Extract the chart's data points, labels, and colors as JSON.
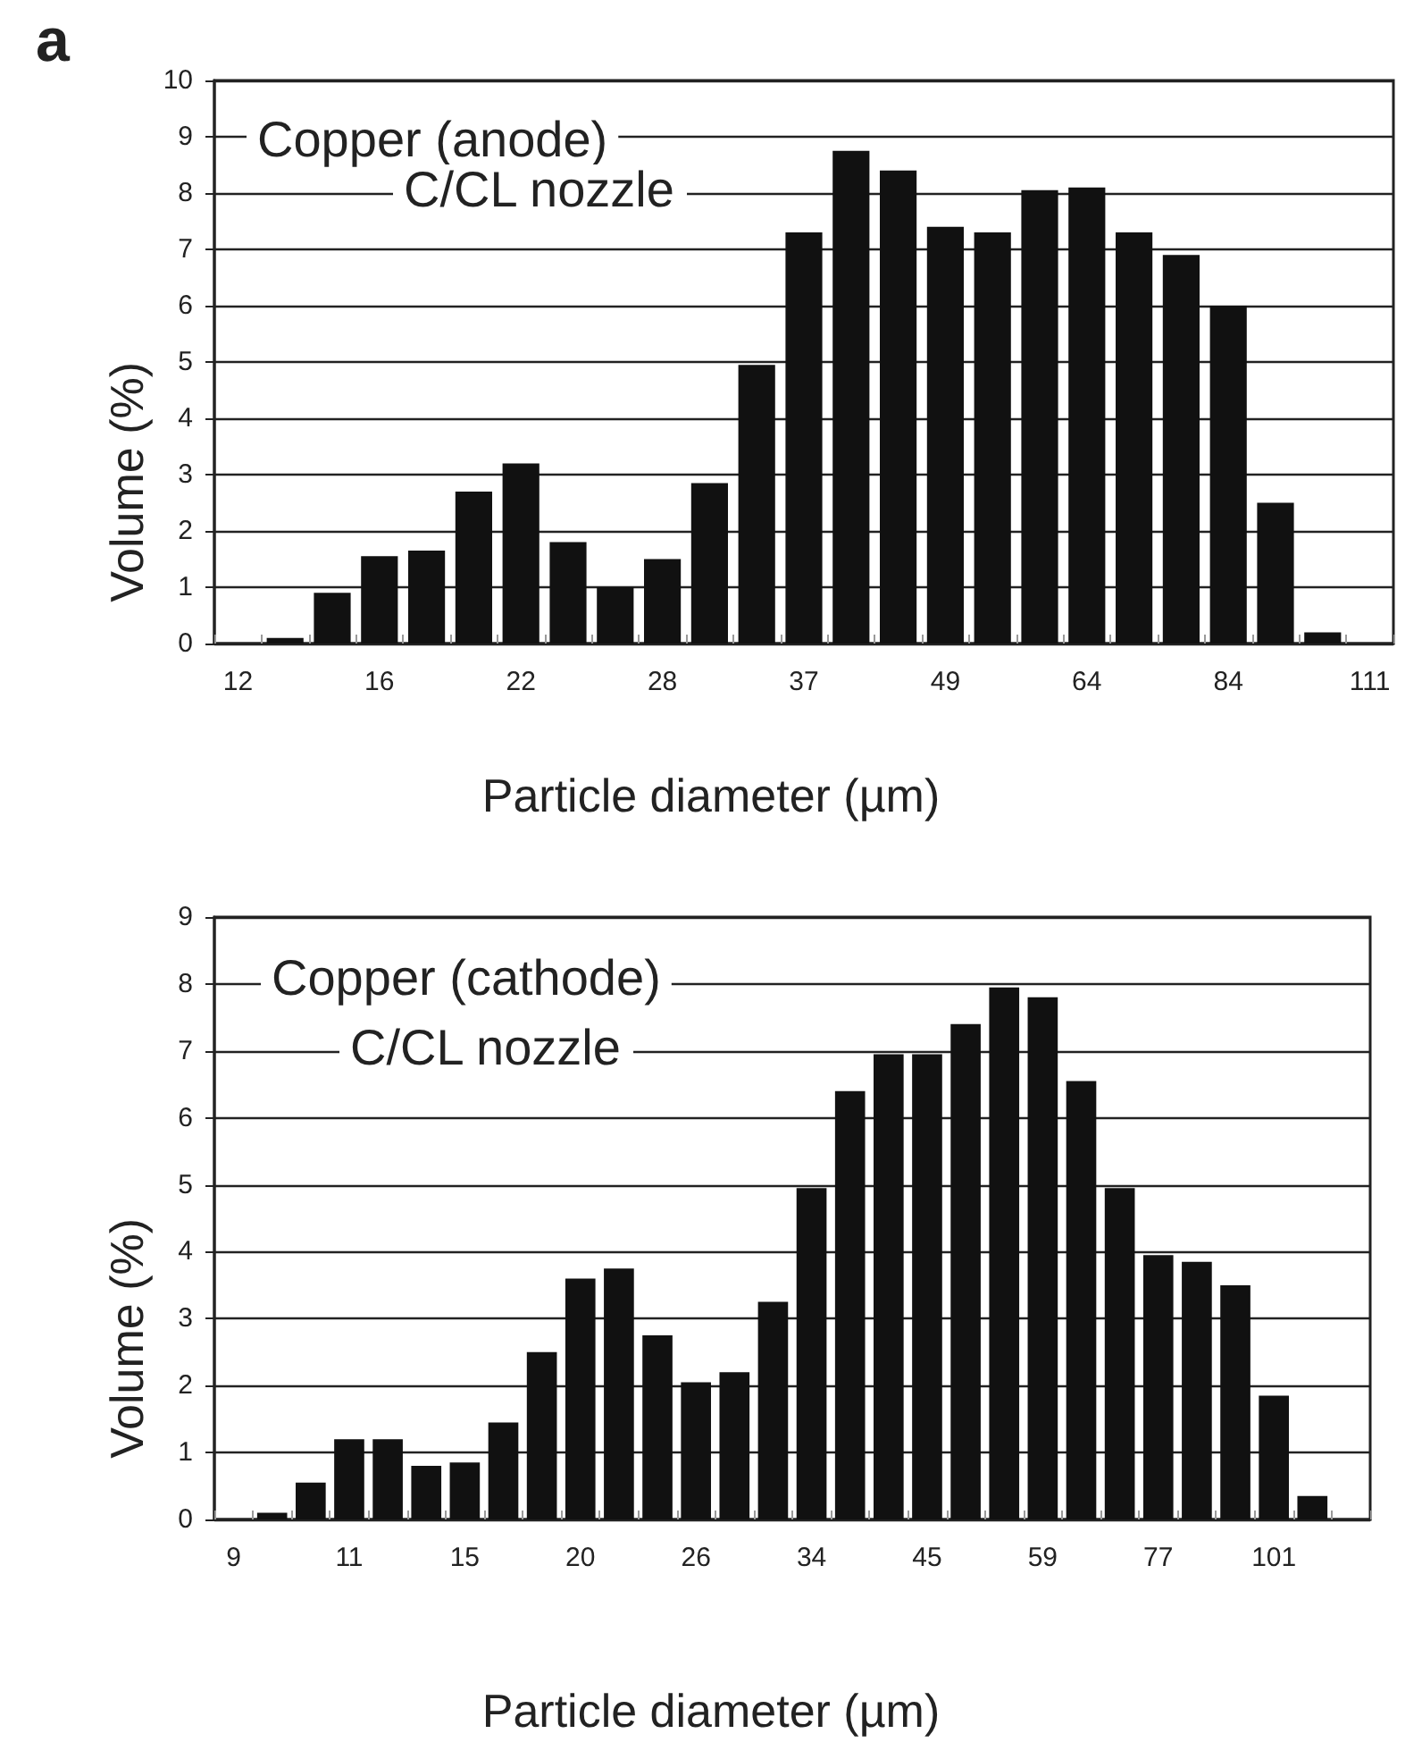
{
  "chart_data": [
    {
      "type": "bar",
      "annotations": [
        "a",
        "Copper (anode)",
        "C/CL nozzle"
      ],
      "xlabel": "Particle diameter (µm)",
      "ylabel": "Volume (%)",
      "categories": [
        "12",
        null,
        null,
        "16",
        null,
        null,
        "22",
        null,
        null,
        "28",
        null,
        null,
        "37",
        null,
        null,
        "49",
        null,
        null,
        "64",
        null,
        null,
        "84",
        null,
        null,
        "111"
      ],
      "values": [
        null,
        0.1,
        0.9,
        1.55,
        1.65,
        2.7,
        3.2,
        1.8,
        1.0,
        1.5,
        2.85,
        4.95,
        7.3,
        8.75,
        8.4,
        7.4,
        7.3,
        8.05,
        8.1,
        7.3,
        6.9,
        6.0,
        2.5,
        0.2,
        null
      ],
      "color": "#111111",
      "ylim": [
        0,
        10
      ],
      "yticks": [
        0,
        1,
        2,
        3,
        4,
        5,
        6,
        7,
        8,
        9,
        10
      ],
      "grid": "y"
    },
    {
      "type": "bar",
      "annotations": [
        "Copper (cathode)",
        "C/CL nozzle"
      ],
      "xlabel": "Particle diameter (µm)",
      "ylabel": "Volume (%)",
      "categories": [
        "9",
        null,
        null,
        "11",
        null,
        null,
        "15",
        null,
        null,
        "20",
        null,
        null,
        "26",
        null,
        null,
        "34",
        null,
        null,
        "45",
        null,
        null,
        "59",
        null,
        null,
        "77",
        null,
        null,
        "101",
        null,
        null
      ],
      "values": [
        null,
        0.1,
        0.55,
        1.2,
        1.2,
        0.8,
        0.85,
        1.45,
        2.5,
        3.6,
        3.75,
        2.75,
        2.05,
        2.2,
        3.25,
        4.95,
        6.4,
        6.95,
        6.95,
        7.4,
        7.95,
        7.8,
        6.55,
        4.95,
        3.95,
        3.85,
        3.5,
        1.85,
        0.35,
        null
      ],
      "color": "#111111",
      "ylim": [
        0,
        9
      ],
      "yticks": [
        0,
        1,
        2,
        3,
        4,
        5,
        6,
        7,
        8,
        9
      ],
      "grid": "y"
    }
  ]
}
